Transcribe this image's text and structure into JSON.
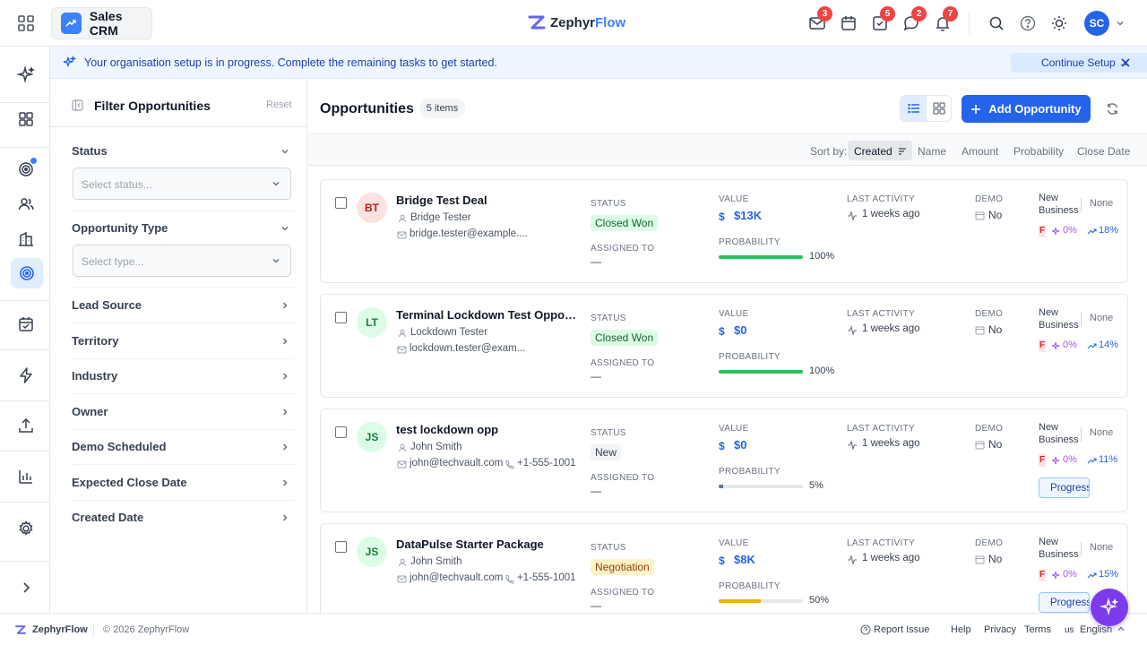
{
  "app": {
    "name": "Sales CRM",
    "brand_first": "Zephyr",
    "brand_second": "Flow",
    "accent": "#2563eb"
  },
  "header": {
    "badges": {
      "mail": "3",
      "tasks": "5",
      "chat": "2",
      "notifications": "7"
    },
    "user_initials": "SC"
  },
  "notice": {
    "text": "Your organisation setup is in progress. Complete the remaining tasks to get started.",
    "button": "Continue Setup →"
  },
  "filter": {
    "title": "Filter Opportunities",
    "reset": "Reset",
    "status_label": "Status",
    "status_placeholder": "Select status...",
    "type_label": "Opportunity Type",
    "type_placeholder": "Select type...",
    "sections": [
      "Lead Source",
      "Territory",
      "Industry",
      "Owner",
      "Demo Scheduled",
      "Expected Close Date",
      "Created Date"
    ]
  },
  "main": {
    "title": "Opportunities",
    "count": "5 items",
    "add_button": "Add Opportunity",
    "sort_by": "Sort by:",
    "sort_options": [
      "Created",
      "Name",
      "Amount",
      "Probability",
      "Close Date"
    ],
    "labels": {
      "status": "STATUS",
      "assigned": "ASSIGNED TO",
      "value": "VALUE",
      "probability": "PROBABILITY",
      "last_activity": "LAST ACTIVITY",
      "demo": "DEMO"
    }
  },
  "opportunities": [
    {
      "initials": "BT",
      "name": "Bridge Test Deal",
      "contact": "Bridge Tester",
      "email": "bridge.tester@example....",
      "phone": "",
      "status": "Closed Won",
      "assigned": "—",
      "value": "$13K",
      "probability": 100,
      "probability_text": "100%",
      "last_activity": "1 weeks ago",
      "demo": "No",
      "type_line1": "New",
      "type_line2": "Business",
      "priority": "None",
      "flag": "F",
      "pct1": "0%",
      "pct2": "18%",
      "progress": ""
    },
    {
      "initials": "LT",
      "name": "Terminal Lockdown Test Opportun...",
      "contact": "Lockdown Tester",
      "email": "lockdown.tester@exam...",
      "phone": "",
      "status": "Closed Won",
      "assigned": "—",
      "value": "$0",
      "probability": 100,
      "probability_text": "100%",
      "last_activity": "1 weeks ago",
      "demo": "No",
      "type_line1": "New",
      "type_line2": "Business",
      "priority": "None",
      "flag": "F",
      "pct1": "0%",
      "pct2": "14%",
      "progress": ""
    },
    {
      "initials": "JS",
      "name": "test lockdown opp",
      "contact": "John Smith",
      "email": "john@techvault.com",
      "phone": "+1-555-1001",
      "status": "New",
      "assigned": "—",
      "value": "$0",
      "probability": 5,
      "probability_text": "5%",
      "last_activity": "1 weeks ago",
      "demo": "No",
      "type_line1": "New",
      "type_line2": "Business",
      "priority": "None",
      "flag": "F",
      "pct1": "0%",
      "pct2": "11%",
      "progress": "Progress"
    },
    {
      "initials": "JS",
      "name": "DataPulse Starter Package",
      "contact": "John Smith",
      "email": "john@techvault.com",
      "phone": "+1-555-1001",
      "status": "Negotiation",
      "assigned": "—",
      "value": "$8K",
      "probability": 50,
      "probability_text": "50%",
      "last_activity": "1 weeks ago",
      "demo": "No",
      "type_line1": "New",
      "type_line2": "Business",
      "priority": "None",
      "flag": "F",
      "pct1": "0%",
      "pct2": "15%",
      "progress": "Progress"
    }
  ],
  "footer": {
    "brand": "ZephyrFlow",
    "copyright": "© 2026 ZephyrFlow",
    "report": "Report Issue",
    "help": "Help",
    "privacy": "Privacy",
    "terms": "Terms",
    "lang_code": "us",
    "language": "English"
  }
}
